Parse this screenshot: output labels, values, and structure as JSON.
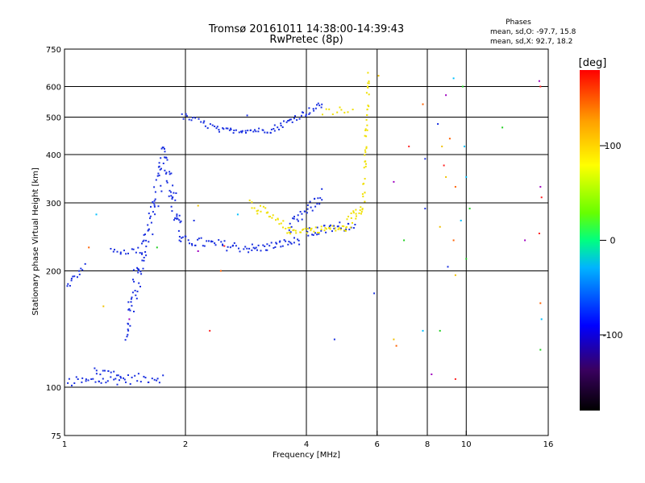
{
  "chart_data": {
    "type": "scatter",
    "title": "Tromsø 20161011 14:38:00-14:39:43",
    "subtitle": "RwPretec (8p)",
    "xlabel": "Frequency [MHz]",
    "ylabel": "Stationary phase Virtual Height [km]",
    "x_scale": "log",
    "y_scale": "log",
    "xlim": [
      1,
      16
    ],
    "ylim": [
      75,
      750
    ],
    "x_ticks": [
      1,
      2,
      4,
      6,
      8,
      10,
      16
    ],
    "x_tick_labels": [
      "1",
      "2",
      "4",
      "6",
      "8",
      "10",
      "16"
    ],
    "y_ticks": [
      75,
      100,
      200,
      300,
      400,
      500,
      600,
      750
    ],
    "y_tick_labels": [
      "75",
      "100",
      "200",
      "300",
      "400",
      "500",
      "600",
      "750"
    ],
    "grid": true,
    "phases_box": {
      "title": "Phases",
      "line_o": "mean, sd,O: -97.7, 15.8",
      "line_x": "mean, sd,X:  92.7, 18.2"
    },
    "colorbar": {
      "unit": "[deg]",
      "range": [
        -180,
        180
      ],
      "ticks": [
        100,
        0,
        -100
      ],
      "tick_labels": [
        "100",
        "0",
        "-100"
      ],
      "colors": [
        "#000000",
        "#3a0060",
        "#0000ff",
        "#00b4ff",
        "#00ff80",
        "#66ff00",
        "#ffff00",
        "#ffa000",
        "#ff0000"
      ]
    },
    "series": [
      {
        "phase": -100,
        "color": "#1a30e0",
        "traces": [
          {
            "f0": 1.0,
            "f1": 1.12,
            "h0": 180,
            "h1": 205,
            "n": 14,
            "jitter": 0.02
          },
          {
            "f0": 1.02,
            "f1": 1.75,
            "h0": 103,
            "h1": 106,
            "n": 45,
            "jitter": 0.03
          },
          {
            "f0": 1.18,
            "f1": 1.4,
            "h0": 110,
            "h1": 108,
            "n": 14,
            "jitter": 0.03
          },
          {
            "f0": 1.3,
            "f1": 1.55,
            "h0": 224,
            "h1": 226,
            "n": 14,
            "jitter": 0.02
          },
          {
            "f0": 1.42,
            "f1": 1.78,
            "h0": 140,
            "h1": 400,
            "n": 90,
            "jitter": 0.12
          },
          {
            "f0": 1.78,
            "f1": 1.95,
            "h0": 400,
            "h1": 245,
            "n": 40,
            "jitter": 0.1
          },
          {
            "f0": 1.95,
            "f1": 3.0,
            "h0": 240,
            "h1": 228,
            "n": 45,
            "jitter": 0.03
          },
          {
            "f0": 3.0,
            "f1": 3.85,
            "h0": 228,
            "h1": 240,
            "n": 30,
            "jitter": 0.025
          },
          {
            "f0": 3.6,
            "f1": 4.4,
            "h0": 255,
            "h1": 315,
            "n": 30,
            "jitter": 0.04
          },
          {
            "f0": 1.95,
            "f1": 2.4,
            "h0": 505,
            "h1": 468,
            "n": 18,
            "jitter": 0.02
          },
          {
            "f0": 2.4,
            "f1": 3.3,
            "h0": 462,
            "h1": 462,
            "n": 35,
            "jitter": 0.015
          },
          {
            "f0": 3.3,
            "f1": 4.4,
            "h0": 465,
            "h1": 540,
            "n": 35,
            "jitter": 0.02
          },
          {
            "f0": 4.0,
            "f1": 5.3,
            "h0": 250,
            "h1": 265,
            "n": 30,
            "jitter": 0.03
          }
        ]
      },
      {
        "phase": 100,
        "color": "#f0e000",
        "traces": [
          {
            "f0": 2.9,
            "f1": 3.6,
            "h0": 300,
            "h1": 256,
            "n": 28,
            "jitter": 0.03
          },
          {
            "f0": 3.6,
            "f1": 5.0,
            "h0": 254,
            "h1": 258,
            "n": 38,
            "jitter": 0.02
          },
          {
            "f0": 5.0,
            "f1": 5.55,
            "h0": 260,
            "h1": 300,
            "n": 22,
            "jitter": 0.04
          },
          {
            "f0": 5.55,
            "f1": 5.72,
            "h0": 300,
            "h1": 640,
            "n": 40,
            "jitter": 0.04
          },
          {
            "f0": 4.4,
            "f1": 5.2,
            "h0": 515,
            "h1": 525,
            "n": 10,
            "jitter": 0.02
          }
        ]
      }
    ],
    "scattered_points": [
      [
        2.85,
        505
      ],
      [
        6.05,
        640
      ],
      [
        7.8,
        540
      ],
      [
        9.3,
        630
      ],
      [
        9.8,
        600
      ],
      [
        15.2,
        620
      ],
      [
        15.3,
        600
      ],
      [
        8.5,
        480
      ],
      [
        8.7,
        420
      ],
      [
        9.1,
        440
      ],
      [
        9.9,
        420
      ],
      [
        12.3,
        470
      ],
      [
        6.6,
        340
      ],
      [
        7.2,
        420
      ],
      [
        7.9,
        390
      ],
      [
        8.9,
        350
      ],
      [
        9.4,
        330
      ],
      [
        10.0,
        350
      ],
      [
        10.2,
        290
      ],
      [
        15.3,
        330
      ],
      [
        15.4,
        310
      ],
      [
        7.9,
        290
      ],
      [
        8.6,
        260
      ],
      [
        9.3,
        240
      ],
      [
        9.7,
        270
      ],
      [
        10.0,
        215
      ],
      [
        14.0,
        240
      ],
      [
        15.2,
        250
      ],
      [
        9.0,
        205
      ],
      [
        9.4,
        195
      ],
      [
        15.3,
        165
      ],
      [
        15.4,
        150
      ],
      [
        15.3,
        125
      ],
      [
        1.45,
        150
      ],
      [
        2.3,
        140
      ],
      [
        4.7,
        133
      ],
      [
        6.6,
        133
      ],
      [
        6.7,
        128
      ],
      [
        7.8,
        140
      ],
      [
        8.6,
        140
      ],
      [
        8.2,
        108
      ],
      [
        9.4,
        105
      ],
      [
        5.9,
        175
      ],
      [
        1.25,
        162
      ],
      [
        1.15,
        230
      ],
      [
        1.2,
        280
      ],
      [
        1.7,
        230
      ],
      [
        2.15,
        225
      ],
      [
        2.5,
        232
      ],
      [
        2.1,
        270
      ],
      [
        2.15,
        295
      ],
      [
        2.45,
        200
      ],
      [
        2.7,
        280
      ],
      [
        7.0,
        240
      ],
      [
        8.9,
        570
      ],
      [
        8.8,
        375
      ]
    ]
  }
}
